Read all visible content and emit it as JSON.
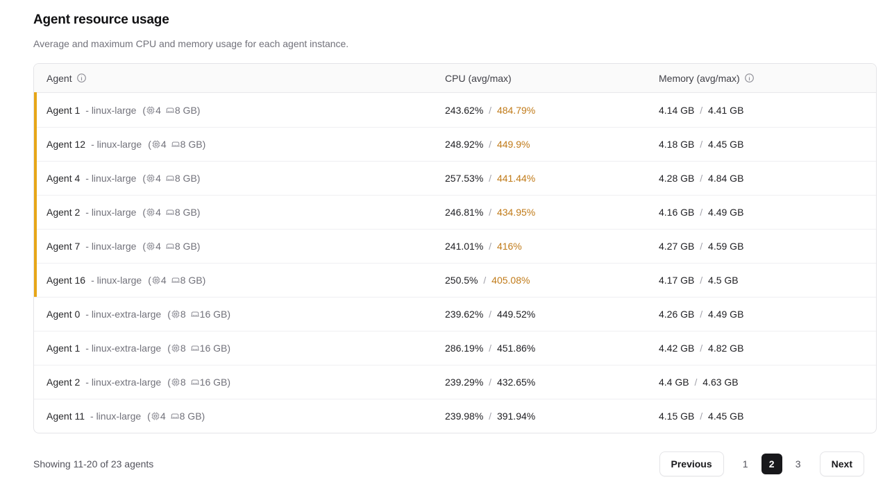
{
  "page": {
    "title": "Agent resource usage",
    "subtitle": "Average and maximum CPU and memory usage for each agent instance."
  },
  "table": {
    "header": {
      "agent": "Agent",
      "cpu": "CPU (avg/max)",
      "memory": "Memory (avg/max)"
    },
    "row_format": {
      "spec_open": "(",
      "spec_close": ")",
      "value_separator": "/"
    },
    "rows": [
      {
        "agent": "Agent 1",
        "instance_label": "- linux-large",
        "cpus": "4",
        "memory_size": "8 GB",
        "cpu_avg": "243.62%",
        "cpu_max": "484.79%",
        "mem_avg": "4.14 GB",
        "mem_max": "4.41 GB",
        "alert": true
      },
      {
        "agent": "Agent 12",
        "instance_label": "- linux-large",
        "cpus": "4",
        "memory_size": "8 GB",
        "cpu_avg": "248.92%",
        "cpu_max": "449.9%",
        "mem_avg": "4.18 GB",
        "mem_max": "4.45 GB",
        "alert": true
      },
      {
        "agent": "Agent 4",
        "instance_label": "- linux-large",
        "cpus": "4",
        "memory_size": "8 GB",
        "cpu_avg": "257.53%",
        "cpu_max": "441.44%",
        "mem_avg": "4.28 GB",
        "mem_max": "4.84 GB",
        "alert": true
      },
      {
        "agent": "Agent 2",
        "instance_label": "- linux-large",
        "cpus": "4",
        "memory_size": "8 GB",
        "cpu_avg": "246.81%",
        "cpu_max": "434.95%",
        "mem_avg": "4.16 GB",
        "mem_max": "4.49 GB",
        "alert": true
      },
      {
        "agent": "Agent 7",
        "instance_label": "- linux-large",
        "cpus": "4",
        "memory_size": "8 GB",
        "cpu_avg": "241.01%",
        "cpu_max": "416%",
        "mem_avg": "4.27 GB",
        "mem_max": "4.59 GB",
        "alert": true
      },
      {
        "agent": "Agent 16",
        "instance_label": "- linux-large",
        "cpus": "4",
        "memory_size": "8 GB",
        "cpu_avg": "250.5%",
        "cpu_max": "405.08%",
        "mem_avg": "4.17 GB",
        "mem_max": "4.5 GB",
        "alert": true
      },
      {
        "agent": "Agent 0",
        "instance_label": "- linux-extra-large",
        "cpus": "8",
        "memory_size": "16 GB",
        "cpu_avg": "239.62%",
        "cpu_max": "449.52%",
        "mem_avg": "4.26 GB",
        "mem_max": "4.49 GB",
        "alert": false
      },
      {
        "agent": "Agent 1",
        "instance_label": "- linux-extra-large",
        "cpus": "8",
        "memory_size": "16 GB",
        "cpu_avg": "286.19%",
        "cpu_max": "451.86%",
        "mem_avg": "4.42 GB",
        "mem_max": "4.82 GB",
        "alert": false
      },
      {
        "agent": "Agent 2",
        "instance_label": "- linux-extra-large",
        "cpus": "8",
        "memory_size": "16 GB",
        "cpu_avg": "239.29%",
        "cpu_max": "432.65%",
        "mem_avg": "4.4 GB",
        "mem_max": "4.63 GB",
        "alert": false
      },
      {
        "agent": "Agent 11",
        "instance_label": "- linux-large",
        "cpus": "4",
        "memory_size": "8 GB",
        "cpu_avg": "239.98%",
        "cpu_max": "391.94%",
        "mem_avg": "4.15 GB",
        "mem_max": "4.45 GB",
        "alert": false
      }
    ]
  },
  "footer": {
    "showing_text": "Showing 11-20 of 23 agents",
    "pagination": {
      "previous_label": "Previous",
      "pages": [
        "1",
        "2",
        "3"
      ],
      "active_page": "2",
      "next_label": "Next"
    }
  },
  "colors": {
    "alert_bar": "#e7a617",
    "alert_text": "#c07a18"
  }
}
